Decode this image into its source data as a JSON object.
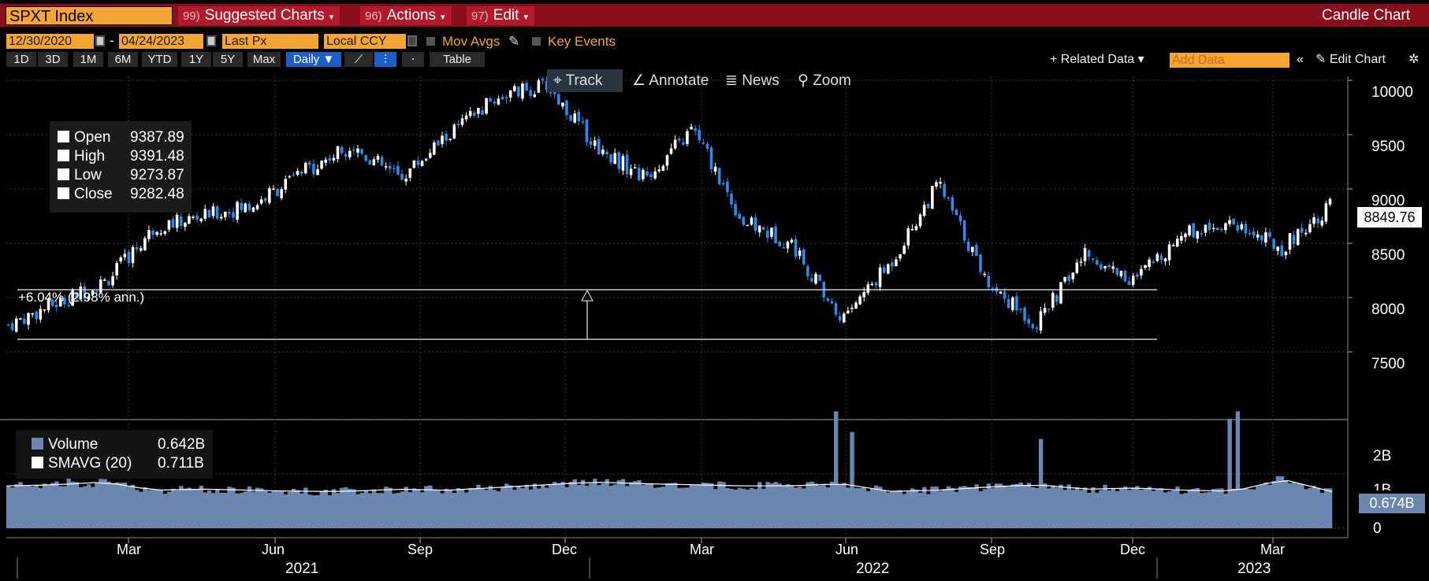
{
  "titlebar": {
    "ticker": "SPXT Index",
    "menus": [
      {
        "num": "99)",
        "label": "Suggested Charts"
      },
      {
        "num": "96)",
        "label": "Actions"
      },
      {
        "num": "97)",
        "label": "Edit"
      }
    ],
    "chart_type": "Candle Chart"
  },
  "controls": {
    "start_date": "12/30/2020",
    "date_sep": "-",
    "end_date": "04/24/2023",
    "field": "Last Px",
    "currency": "Local CCY",
    "mov_avgs": "Mov Avgs",
    "key_events": "Key Events"
  },
  "periods": [
    "1D",
    "3D",
    "1M",
    "6M",
    "YTD",
    "1Y",
    "5Y",
    "Max"
  ],
  "frequency": "Daily",
  "table_label": "Table",
  "related_data": "Related Data",
  "add_data_placeholder": "Add Data",
  "edit_chart": "Edit Chart",
  "tools": [
    "Track",
    "Annotate",
    "News",
    "Zoom"
  ],
  "legend": {
    "rows": [
      {
        "label": "Open",
        "value": "9387.89"
      },
      {
        "label": "High",
        "value": "9391.48"
      },
      {
        "label": "Low",
        "value": "9273.87"
      },
      {
        "label": "Close",
        "value": "9282.48"
      }
    ]
  },
  "volume_legend": {
    "rows": [
      {
        "label": "Volume",
        "value": "0.642B",
        "color": "#6b87b0"
      },
      {
        "label": "SMAVG (20)",
        "value": "0.711B",
        "color": "#ffffff"
      }
    ]
  },
  "last_price_tag": "8849.76",
  "last_volume_tag": "0.674B",
  "annotation_text": "+6.04% (2.98% ann.)",
  "price_axis_labels": [
    "10000",
    "9500",
    "9000",
    "8500",
    "8000",
    "7500"
  ],
  "volume_axis_labels": [
    "2B",
    "1B",
    "0"
  ],
  "month_labels": [
    "Mar",
    "Jun",
    "Sep",
    "Dec",
    "Mar",
    "Jun",
    "Sep",
    "Dec",
    "Mar"
  ],
  "year_labels": [
    "2021",
    "2022",
    "2023"
  ],
  "colors": {
    "up": "#ffffff",
    "down": "#2f8be8",
    "accent": "#f4a533",
    "titlebar": "#8b0e1c",
    "volume": "#6b87b0"
  },
  "chart_data": {
    "type": "line",
    "title": "",
    "xlabel": "",
    "ylabel": "",
    "ylim": [
      7050,
      10150
    ],
    "x": [
      "2021-01",
      "2021-02",
      "2021-03",
      "2021-04",
      "2021-05",
      "2021-06",
      "2021-07",
      "2021-08",
      "2021-09",
      "2021-10",
      "2021-11",
      "2021-12",
      "2022-01",
      "2022-02",
      "2022-03",
      "2022-04",
      "2022-05",
      "2022-06",
      "2022-07",
      "2022-08",
      "2022-09",
      "2022-10",
      "2022-11",
      "2022-12",
      "2023-01",
      "2023-02",
      "2023-03",
      "2023-04"
    ],
    "series": [
      {
        "values": [
          7750,
          7950,
          8150,
          8650,
          8750,
          8850,
          9150,
          9400,
          9100,
          9500,
          9850,
          9950,
          9400,
          9100,
          9550,
          8700,
          8500,
          7800,
          8300,
          9050,
          8150,
          7750,
          8400,
          8150,
          8600,
          8700,
          8450,
          8849.76
        ]
      },
      {
        "values": [
          0.78,
          0.8,
          0.85,
          0.7,
          0.72,
          0.7,
          0.68,
          0.68,
          0.72,
          0.7,
          0.75,
          0.8,
          0.85,
          0.82,
          0.8,
          0.78,
          0.78,
          0.82,
          0.68,
          0.7,
          0.76,
          0.8,
          0.72,
          0.74,
          0.7,
          0.68,
          0.9,
          0.674
        ]
      }
    ]
  }
}
